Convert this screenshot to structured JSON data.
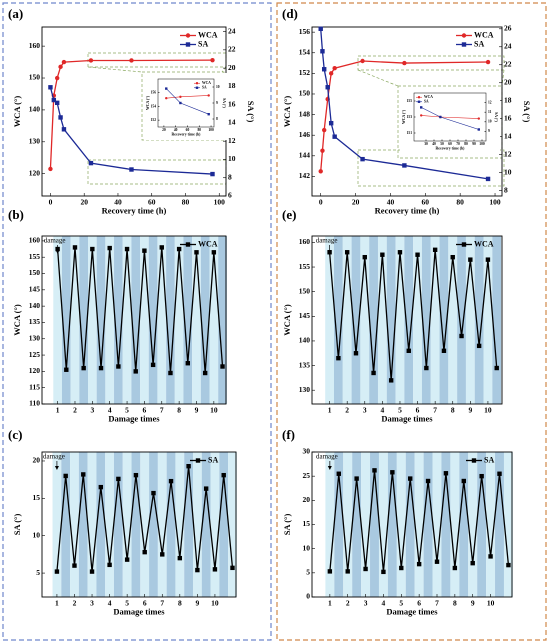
{
  "chart_data": [
    {
      "type": "line",
      "panel_label": "(a)",
      "xlabel": "Recovery time (h)",
      "ylabel": "WCA (°)",
      "y2label": "SA (°)",
      "x": [
        0,
        2,
        4,
        6,
        8,
        24,
        48,
        96
      ],
      "xlim": [
        -5,
        104
      ],
      "xticks": [
        0,
        20,
        40,
        60,
        80,
        100
      ],
      "ylim": [
        113,
        166
      ],
      "yticks": [
        120,
        130,
        140,
        150,
        160
      ],
      "y2lim": [
        6,
        24.5
      ],
      "y2ticks": [
        6,
        8,
        10,
        12,
        14,
        16,
        18,
        20,
        22,
        24
      ],
      "legend": "upper right",
      "series": [
        {
          "name": "WCA",
          "color": "#e02828",
          "marker": "circle",
          "values": [
            121.5,
            144.5,
            150,
            153.5,
            155,
            155.5,
            155.5,
            155.6
          ]
        },
        {
          "name": "SA",
          "color": "#1c2a96",
          "marker": "square",
          "axis": "y2",
          "values": [
            17.9,
            16.5,
            16.2,
            14.6,
            13.3,
            9.6,
            8.9,
            8.4
          ]
        }
      ]
    },
    {
      "type": "line",
      "panel_label": "(b)",
      "xlabel": "Damage times",
      "ylabel": "WCA (°)",
      "annotation": "damage",
      "x": [
        1,
        1.5,
        2,
        2.5,
        3,
        3.5,
        4,
        4.5,
        5,
        5.5,
        6,
        6.5,
        7,
        7.5,
        8,
        8.5,
        9,
        9.5,
        10,
        10.5
      ],
      "xlim": [
        0.1,
        10.7
      ],
      "xticks": [
        1,
        2,
        3,
        4,
        5,
        6,
        7,
        8,
        9,
        10
      ],
      "ylim": [
        110,
        161.5
      ],
      "yticks": [
        110,
        115,
        120,
        125,
        130,
        135,
        140,
        145,
        150,
        155,
        160
      ],
      "legend": "upper right",
      "band_colors": [
        "#d6eef6",
        "#a9c9e0"
      ],
      "series": [
        {
          "name": "WCA",
          "color": "#000000",
          "marker": "square",
          "values": [
            157.5,
            120.5,
            158,
            121,
            157.5,
            121,
            157.8,
            121.5,
            157.5,
            120,
            157,
            122,
            158,
            119.5,
            157.5,
            122.5,
            156.5,
            119.5,
            156.5,
            121.5
          ]
        }
      ]
    },
    {
      "type": "line",
      "panel_label": "(c)",
      "xlabel": "Damage times",
      "ylabel": "SA (°)",
      "annotation": "damage",
      "x": [
        1,
        1.5,
        2,
        2.5,
        3,
        3.5,
        4,
        4.5,
        5,
        5.5,
        6,
        6.5,
        7,
        7.5,
        8,
        8.5,
        9,
        9.5,
        10,
        10.5,
        11
      ],
      "xlim": [
        0.15,
        11.2
      ],
      "xticks": [
        1,
        2,
        3,
        4,
        5,
        6,
        7,
        8,
        9,
        10
      ],
      "ylim": [
        1.8,
        21.2
      ],
      "yticks": [
        5,
        10,
        15,
        20
      ],
      "legend": "upper right",
      "band_colors": [
        "#d6eef6",
        "#a9c9e0"
      ],
      "series": [
        {
          "name": "SA",
          "color": "#000000",
          "marker": "square",
          "values": [
            5.2,
            18,
            6,
            18.2,
            5.2,
            16.5,
            6.1,
            17.6,
            6.8,
            18.1,
            7.8,
            15.7,
            7.5,
            17.3,
            7,
            19.3,
            5.4,
            16.3,
            5.5,
            18.1,
            5.7
          ]
        }
      ]
    },
    {
      "type": "line",
      "panel_label": "(d)",
      "xlabel": "Recovery time (h)",
      "ylabel": "WCA (°)",
      "y2label": "SA (°)",
      "x": [
        0,
        1,
        2,
        4,
        6,
        8,
        24,
        48,
        96
      ],
      "xlim": [
        -5,
        104
      ],
      "xticks": [
        0,
        20,
        40,
        60,
        80,
        100
      ],
      "ylim": [
        140.1,
        156.5
      ],
      "yticks": [
        142,
        144,
        146,
        148,
        150,
        152,
        154,
        156
      ],
      "y2lim": [
        7.4,
        26.2
      ],
      "y2ticks": [
        8,
        10,
        12,
        14,
        16,
        18,
        20,
        22,
        24,
        26
      ],
      "legend": "upper right",
      "series": [
        {
          "name": "WCA",
          "color": "#e02828",
          "marker": "circle",
          "values": [
            142.5,
            144.5,
            146.5,
            149.5,
            152,
            152.5,
            153.2,
            153,
            153.1
          ]
        },
        {
          "name": "SA",
          "color": "#1c2a96",
          "marker": "square",
          "axis": "y2",
          "values": [
            26,
            23.5,
            21.5,
            19.5,
            15.5,
            14,
            11.5,
            10.8,
            9.3
          ]
        }
      ]
    },
    {
      "type": "line",
      "panel_label": "(e)",
      "xlabel": "Damage times",
      "ylabel": "WCA (°)",
      "annotation": "damage",
      "x": [
        1,
        1.5,
        2,
        2.5,
        3,
        3.5,
        4,
        4.5,
        5,
        5.5,
        6,
        6.5,
        7,
        7.5,
        8,
        8.5,
        9,
        9.5,
        10,
        10.5
      ],
      "xlim": [
        0,
        10.8
      ],
      "xticks": [
        1,
        2,
        3,
        4,
        5,
        6,
        7,
        8,
        9,
        10
      ],
      "ylim": [
        127.2,
        161.3
      ],
      "yticks": [
        130,
        135,
        140,
        145,
        150,
        155,
        160
      ],
      "legend": "upper right",
      "band_colors": [
        "#d6eef6",
        "#a9c9e0"
      ],
      "series": [
        {
          "name": "WCA",
          "color": "#000000",
          "marker": "square",
          "values": [
            158,
            136.5,
            158,
            137.5,
            157,
            133.5,
            157.5,
            132,
            158,
            138,
            157.5,
            134.5,
            158.5,
            138,
            157,
            141,
            156.5,
            139,
            156.5,
            134.5
          ]
        }
      ]
    },
    {
      "type": "line",
      "panel_label": "(f)",
      "xlabel": "Damage times",
      "ylabel": "SA (°)",
      "annotation": "damage",
      "x": [
        1,
        1.5,
        2,
        2.5,
        3,
        3.5,
        4,
        4.5,
        5,
        5.5,
        6,
        6.5,
        7,
        7.5,
        8,
        8.5,
        9,
        9.5,
        10,
        10.5,
        11
      ],
      "xlim": [
        0,
        11.2
      ],
      "xticks": [
        1,
        2,
        3,
        4,
        5,
        6,
        7,
        8,
        9,
        10
      ],
      "ylim": [
        0,
        30
      ],
      "yticks": [
        0,
        5,
        10,
        15,
        20,
        25,
        30
      ],
      "legend": "upper right",
      "band_colors": [
        "#d6eef6",
        "#a9c9e0"
      ],
      "series": [
        {
          "name": "SA",
          "color": "#000000",
          "marker": "square",
          "values": [
            5.3,
            25.5,
            5.3,
            24.5,
            5.8,
            26.2,
            5.2,
            25.8,
            6,
            24.5,
            6.8,
            24,
            7.3,
            25.6,
            6,
            24,
            7,
            25,
            8.4,
            25.5,
            6.6
          ]
        }
      ]
    },
    {
      "type": "line",
      "xlabel": "Recovery time (h)",
      "ylabel": "WCA (°)",
      "y2label": "SA (°)",
      "x": [
        24,
        48,
        96
      ],
      "xlim": [
        10,
        105
      ],
      "xticks": [
        20,
        40,
        60,
        80,
        100
      ],
      "ylim": [
        151,
        158
      ],
      "yticks": [
        152,
        154,
        156
      ],
      "y2lim": [
        7.5,
        10.5
      ],
      "y2ticks": [
        8,
        9,
        10
      ],
      "legend": "upper right",
      "series": [
        {
          "name": "WCA",
          "color": "#e02828",
          "marker": "circle",
          "values": [
            155.2,
            155.4,
            155.6
          ]
        },
        {
          "name": "SA",
          "color": "#1c2a96",
          "marker": "square",
          "axis": "y2",
          "values": [
            9.9,
            9.0,
            8.3
          ]
        }
      ]
    },
    {
      "type": "line",
      "xlabel": "Recovery time (h)",
      "ylabel": "WCA (°)",
      "y2label": "SA (°)",
      "x": [
        24,
        48,
        96
      ],
      "xlim": [
        15,
        105
      ],
      "xticks": [
        30,
        40,
        50,
        60,
        70,
        80,
        90,
        100
      ],
      "ylim": [
        150,
        156
      ],
      "yticks": [
        151,
        153,
        155
      ],
      "y2lim": [
        8,
        13
      ],
      "y2ticks": [
        9,
        10,
        11,
        12
      ],
      "legend": "upper left",
      "series": [
        {
          "name": "WCA",
          "color": "#e02828",
          "marker": "circle",
          "values": [
            153.2,
            153.0,
            152.8
          ]
        },
        {
          "name": "SA",
          "color": "#1c2a96",
          "marker": "square",
          "axis": "y2",
          "values": [
            11.5,
            10.5,
            9.2
          ]
        }
      ]
    }
  ]
}
